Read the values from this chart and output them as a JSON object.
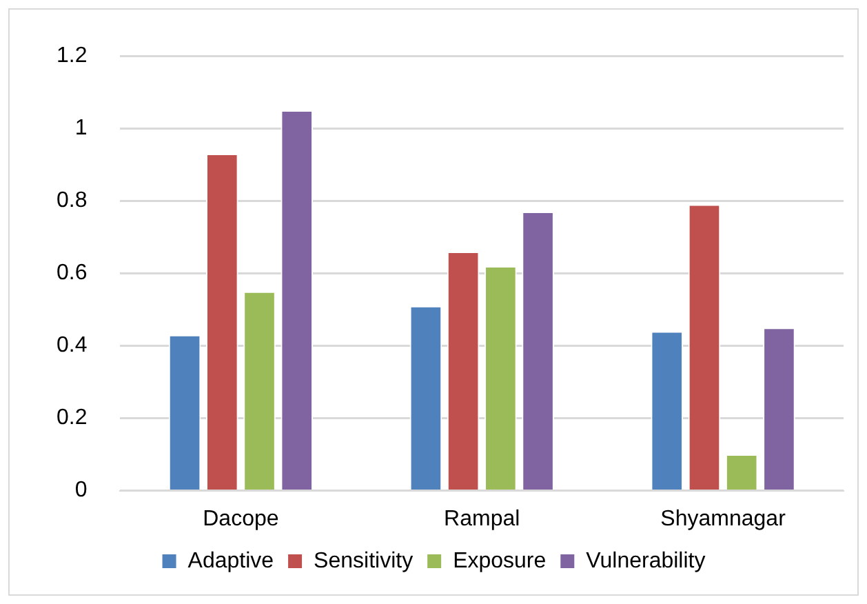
{
  "chart_data": {
    "type": "bar",
    "categories": [
      "Dacope",
      "Rampal",
      "Shyamnagar"
    ],
    "series": [
      {
        "name": "Adaptive",
        "color": "#4f81bd",
        "values": [
          0.43,
          0.51,
          0.44
        ]
      },
      {
        "name": "Sensitivity",
        "color": "#c0504d",
        "values": [
          0.93,
          0.66,
          0.79
        ]
      },
      {
        "name": "Exposure",
        "color": "#9bbb59",
        "values": [
          0.55,
          0.62,
          0.1
        ]
      },
      {
        "name": "Vulnerability",
        "color": "#8064a2",
        "values": [
          1.05,
          0.77,
          0.45
        ]
      }
    ],
    "ylim": [
      0,
      1.2
    ],
    "yticks": [
      0,
      0.2,
      0.4,
      0.6,
      0.8,
      1,
      1.2
    ],
    "grid": "y",
    "legend": "bottom"
  }
}
